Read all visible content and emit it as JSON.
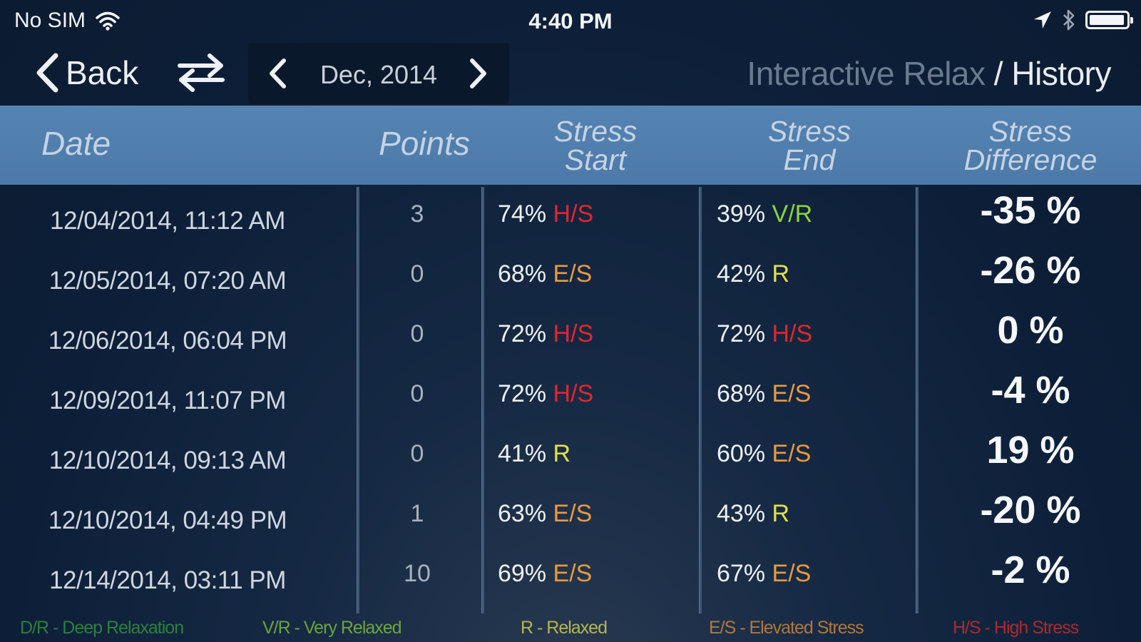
{
  "status_bar": {
    "carrier": "No SIM",
    "time": "4:40 PM",
    "battery_level": 0.95
  },
  "nav": {
    "back_label": "Back",
    "month_label": "Dec, 2014",
    "title_app": "Interactive Relax",
    "title_separator": " / ",
    "title_section": "History"
  },
  "icons": {
    "back": "chevron-left-icon",
    "swap": "swap-arrows-icon",
    "prev": "chevron-left-icon",
    "next": "chevron-right-icon",
    "wifi": "wifi-icon",
    "location": "location-arrow-icon",
    "bluetooth": "bluetooth-icon",
    "battery": "battery-icon"
  },
  "table": {
    "headers": {
      "date": "Date",
      "points": "Points",
      "start_line1": "Stress",
      "start_line2": "Start",
      "end_line1": "Stress",
      "end_line2": "End",
      "diff_line1": "Stress",
      "diff_line2": "Difference"
    },
    "rows": [
      {
        "date": "12/04/2014, 11:12 AM",
        "points": "3",
        "start_pct": "74%",
        "start_level": "H/S",
        "end_pct": "39%",
        "end_level": "V/R",
        "diff": "-35 %"
      },
      {
        "date": "12/05/2014, 07:20 AM",
        "points": "0",
        "start_pct": "68%",
        "start_level": "E/S",
        "end_pct": "42%",
        "end_level": "R",
        "diff": "-26 %"
      },
      {
        "date": "12/06/2014, 06:04 PM",
        "points": "0",
        "start_pct": "72%",
        "start_level": "H/S",
        "end_pct": "72%",
        "end_level": "H/S",
        "diff": "0 %"
      },
      {
        "date": "12/09/2014, 11:07 PM",
        "points": "0",
        "start_pct": "72%",
        "start_level": "H/S",
        "end_pct": "68%",
        "end_level": "E/S",
        "diff": "-4 %"
      },
      {
        "date": "12/10/2014, 09:13 AM",
        "points": "0",
        "start_pct": "41%",
        "start_level": "R",
        "end_pct": "60%",
        "end_level": "E/S",
        "diff": "19 %"
      },
      {
        "date": "12/10/2014, 04:49 PM",
        "points": "1",
        "start_pct": "63%",
        "start_level": "E/S",
        "end_pct": "43%",
        "end_level": "R",
        "diff": "-20 %"
      },
      {
        "date": "12/14/2014, 03:11 PM",
        "points": "10",
        "start_pct": "69%",
        "start_level": "E/S",
        "end_pct": "67%",
        "end_level": "E/S",
        "diff": "-2 %"
      }
    ]
  },
  "legend": [
    {
      "text": "D/R - Deep Relaxation",
      "color": "#2e9a3a"
    },
    {
      "text": "V/R - Very Relaxed",
      "color": "#7fc23a"
    },
    {
      "text": "R - Relaxed",
      "color": "#d9d64a"
    },
    {
      "text": "E/S - Elevated Stress",
      "color": "#d98a38"
    },
    {
      "text": "H/S - High Stress",
      "color": "#d42b2b"
    }
  ],
  "level_colors": {
    "D/R": "#2e9a3a",
    "V/R": "#8dd33c",
    "R": "#e3e04a",
    "E/S": "#e99a3f",
    "H/S": "#e3262a"
  }
}
